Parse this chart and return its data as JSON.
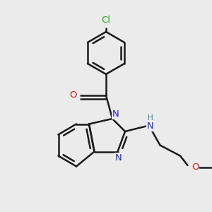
{
  "bg_color": "#ebebeb",
  "bond_color": "#1a1a1a",
  "bond_lw": 1.8,
  "cl_color": "#22aa22",
  "n_color": "#2222cc",
  "o_color": "#cc2222",
  "nh_color": "#228888",
  "oh_color": "#cc2222",
  "font_size_atom": 9.5,
  "font_size_small": 8.5,
  "xlim": [
    0,
    10
  ],
  "ylim": [
    0,
    10
  ]
}
